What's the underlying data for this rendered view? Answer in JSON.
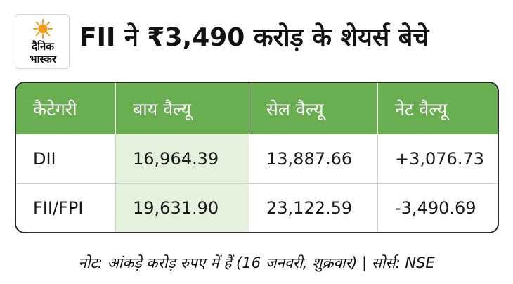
{
  "logo": {
    "line1": "दैनिक",
    "line2": "भास्कर"
  },
  "headline": "FII ने ₹3,490 करोड़ के शेयर्स बेचे",
  "table": {
    "headers": [
      "कैटेगरी",
      "बाय वैल्यू",
      "सेल वैल्यू",
      "नेट वैल्यू"
    ],
    "rows": [
      [
        "DII",
        "16,964.39",
        "13,887.66",
        "+3,076.73"
      ],
      [
        "FII/FPI",
        "19,631.90",
        "23,122.59",
        "-3,490.69"
      ]
    ]
  },
  "footnote": "नोट: आंकड़े करोड़ रुपए में हैं (16 जनवरी, शुक्रवार) | सोर्स: NSE",
  "colors": {
    "header_green": "#6aae52",
    "cell_shade": "#e4f1dd",
    "sun_orange": "#f39c12"
  }
}
